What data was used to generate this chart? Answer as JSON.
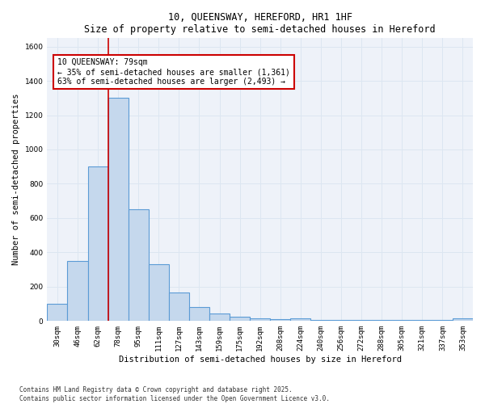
{
  "title": "10, QUEENSWAY, HEREFORD, HR1 1HF",
  "subtitle": "Size of property relative to semi-detached houses in Hereford",
  "xlabel": "Distribution of semi-detached houses by size in Hereford",
  "ylabel": "Number of semi-detached properties",
  "categories": [
    "30sqm",
    "46sqm",
    "62sqm",
    "78sqm",
    "95sqm",
    "111sqm",
    "127sqm",
    "143sqm",
    "159sqm",
    "175sqm",
    "192sqm",
    "208sqm",
    "224sqm",
    "240sqm",
    "256sqm",
    "272sqm",
    "288sqm",
    "305sqm",
    "321sqm",
    "337sqm",
    "353sqm"
  ],
  "values": [
    100,
    350,
    900,
    1300,
    650,
    330,
    165,
    80,
    45,
    25,
    15,
    10,
    15,
    5,
    5,
    5,
    5,
    5,
    5,
    5,
    15
  ],
  "bar_color": "#c5d8ed",
  "bar_edge_color": "#5b9bd5",
  "grid_color": "#dce6f1",
  "bg_color": "#eef2f9",
  "property_bin_index": 3,
  "vline_color": "#cc0000",
  "annotation_text": "10 QUEENSWAY: 79sqm\n← 35% of semi-detached houses are smaller (1,361)\n63% of semi-detached houses are larger (2,493) →",
  "annotation_box_color": "#ffffff",
  "annotation_box_edge": "#cc0000",
  "ylim": [
    0,
    1650
  ],
  "yticks": [
    0,
    200,
    400,
    600,
    800,
    1000,
    1200,
    1400,
    1600
  ],
  "footnote1": "Contains HM Land Registry data © Crown copyright and database right 2025.",
  "footnote2": "Contains public sector information licensed under the Open Government Licence v3.0."
}
